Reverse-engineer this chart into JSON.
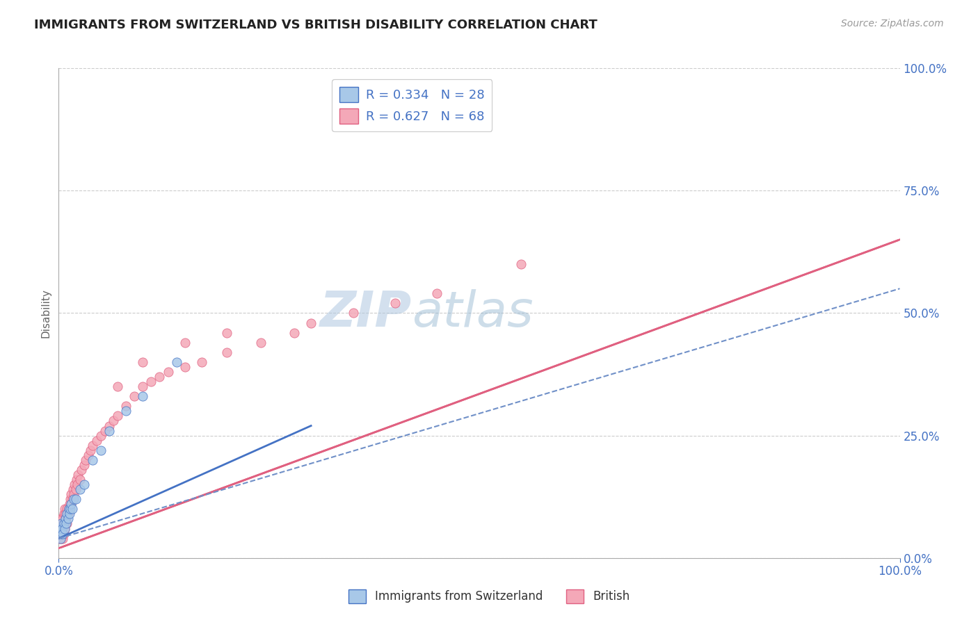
{
  "title": "IMMIGRANTS FROM SWITZERLAND VS BRITISH DISABILITY CORRELATION CHART",
  "source": "Source: ZipAtlas.com",
  "ylabel": "Disability",
  "legend_blue_r": "R = 0.334",
  "legend_blue_n": "N = 28",
  "legend_pink_r": "R = 0.627",
  "legend_pink_n": "N = 68",
  "legend_label_blue": "Immigrants from Switzerland",
  "legend_label_pink": "British",
  "watermark_zip": "ZIP",
  "watermark_atlas": "atlas",
  "blue_scatter_color": "#a8c8e8",
  "pink_scatter_color": "#f4a8b8",
  "blue_line_color": "#4472c4",
  "pink_line_color": "#e06080",
  "dashed_line_color": "#7090c8",
  "background_color": "#ffffff",
  "grid_color": "#cccccc",
  "title_color": "#222222",
  "axis_label_color": "#4472c4",
  "swiss_x": [
    0.001,
    0.002,
    0.002,
    0.003,
    0.003,
    0.004,
    0.005,
    0.006,
    0.007,
    0.008,
    0.009,
    0.01,
    0.011,
    0.012,
    0.013,
    0.014,
    0.015,
    0.016,
    0.018,
    0.02,
    0.025,
    0.03,
    0.04,
    0.05,
    0.06,
    0.08,
    0.1,
    0.14
  ],
  "swiss_y": [
    0.05,
    0.04,
    0.06,
    0.05,
    0.07,
    0.06,
    0.05,
    0.07,
    0.06,
    0.08,
    0.07,
    0.09,
    0.08,
    0.1,
    0.09,
    0.1,
    0.11,
    0.1,
    0.12,
    0.12,
    0.14,
    0.15,
    0.2,
    0.22,
    0.26,
    0.3,
    0.33,
    0.4
  ],
  "british_x": [
    0.001,
    0.001,
    0.002,
    0.002,
    0.003,
    0.003,
    0.003,
    0.004,
    0.004,
    0.005,
    0.005,
    0.005,
    0.006,
    0.006,
    0.007,
    0.007,
    0.008,
    0.008,
    0.009,
    0.01,
    0.01,
    0.011,
    0.012,
    0.013,
    0.014,
    0.015,
    0.015,
    0.016,
    0.017,
    0.018,
    0.019,
    0.02,
    0.021,
    0.022,
    0.023,
    0.025,
    0.027,
    0.03,
    0.032,
    0.035,
    0.038,
    0.04,
    0.045,
    0.05,
    0.055,
    0.06,
    0.065,
    0.07,
    0.08,
    0.09,
    0.1,
    0.11,
    0.12,
    0.13,
    0.15,
    0.17,
    0.2,
    0.24,
    0.28,
    0.3,
    0.35,
    0.4,
    0.45,
    0.55,
    0.07,
    0.1,
    0.15,
    0.2
  ],
  "british_y": [
    0.04,
    0.06,
    0.05,
    0.07,
    0.04,
    0.06,
    0.08,
    0.05,
    0.07,
    0.04,
    0.06,
    0.08,
    0.05,
    0.09,
    0.06,
    0.1,
    0.07,
    0.09,
    0.08,
    0.07,
    0.1,
    0.09,
    0.1,
    0.11,
    0.12,
    0.11,
    0.13,
    0.12,
    0.14,
    0.13,
    0.15,
    0.14,
    0.16,
    0.15,
    0.17,
    0.16,
    0.18,
    0.19,
    0.2,
    0.21,
    0.22,
    0.23,
    0.24,
    0.25,
    0.26,
    0.27,
    0.28,
    0.29,
    0.31,
    0.33,
    0.35,
    0.36,
    0.37,
    0.38,
    0.39,
    0.4,
    0.42,
    0.44,
    0.46,
    0.48,
    0.5,
    0.52,
    0.54,
    0.6,
    0.35,
    0.4,
    0.44,
    0.46
  ],
  "ylim": [
    0.0,
    1.0
  ],
  "xlim": [
    0.0,
    1.0
  ],
  "ytick_values": [
    0.0,
    0.25,
    0.5,
    0.75,
    1.0
  ],
  "ytick_labels": [
    "0.0%",
    "25.0%",
    "50.0%",
    "75.0%",
    "100.0%"
  ],
  "xtick_values": [
    0.0,
    1.0
  ],
  "xtick_labels": [
    "0.0%",
    "100.0%"
  ],
  "pink_line_x0": 0.0,
  "pink_line_y0": 0.02,
  "pink_line_x1": 1.0,
  "pink_line_y1": 0.65,
  "blue_line_x0": 0.0,
  "blue_line_y0": 0.04,
  "blue_line_x1": 0.3,
  "blue_line_y1": 0.27,
  "dashed_line_x0": 0.0,
  "dashed_line_y0": 0.04,
  "dashed_line_x1": 1.0,
  "dashed_line_y1": 0.55
}
